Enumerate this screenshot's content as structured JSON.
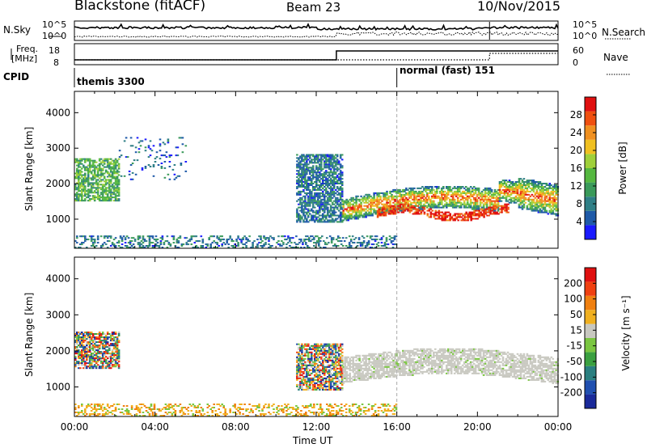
{
  "header": {
    "station": "Blackstone (fitACF)",
    "beam": "Beam 23",
    "date": "10/Nov/2015"
  },
  "strip": {
    "nsky_label": "N.Sky",
    "nsearch_label": "N.Search",
    "log_tick_high": "10^5",
    "log_tick_low": "10^0",
    "freq_label": "Freq.",
    "freq_unit": "[MHz]",
    "freq_ticks": [
      "18",
      "8"
    ],
    "nave_label": "Nave",
    "nave_ticks": [
      "60",
      "0"
    ],
    "cpid_label": "CPID",
    "cpid_segments": [
      {
        "text": "themis 3300",
        "start_hour": 0
      },
      {
        "text": "normal (fast) 151",
        "start_hour": 16
      }
    ]
  },
  "time_axis": {
    "label": "Time UT",
    "ticks": [
      "00:00",
      "04:00",
      "08:00",
      "12:00",
      "16:00",
      "20:00",
      "00:00"
    ]
  },
  "chart_data": [
    {
      "type": "heatmap",
      "name": "power",
      "xlabel": "Time UT",
      "ylabel": "Slant Range [km]",
      "xlim_hours": [
        0,
        24
      ],
      "ylim": [
        180,
        4600
      ],
      "yticks": [
        1000,
        2000,
        3000,
        4000
      ],
      "colorbar_label": "Power [dB]",
      "colorbar_ticks": [
        4,
        8,
        12,
        16,
        20,
        24,
        28
      ],
      "colorbar_range": [
        0,
        32
      ],
      "colors": [
        "#1a1aff",
        "#1f5aa8",
        "#2f7f86",
        "#3a9a5a",
        "#55b840",
        "#9fd03a",
        "#f0c020",
        "#f09020",
        "#f05010",
        "#e01010"
      ],
      "echo_regions": [
        {
          "t0": 0.0,
          "t1": 2.2,
          "r0": 1500,
          "r1": 2700,
          "level": 0.4
        },
        {
          "t0": 2.2,
          "t1": 5.5,
          "r0": 2100,
          "r1": 3300,
          "level": 0.15
        },
        {
          "t0": 0.0,
          "t1": 16.0,
          "r0": 180,
          "r1": 500,
          "level": 0.2
        },
        {
          "t0": 11.0,
          "t1": 13.3,
          "r0": 900,
          "r1": 2800,
          "level": 0.2
        },
        {
          "t0": 13.3,
          "t1": 24.0,
          "r0": 900,
          "r1": 2200,
          "level": 0.55
        },
        {
          "t0": 15.0,
          "t1": 21.5,
          "r0": 900,
          "r1": 1400,
          "level": 0.92
        }
      ]
    },
    {
      "type": "heatmap",
      "name": "velocity",
      "xlabel": "Time UT",
      "ylabel": "Slant Range [km]",
      "xlim_hours": [
        0,
        24
      ],
      "ylim": [
        180,
        4600
      ],
      "yticks": [
        1000,
        2000,
        3000,
        4000
      ],
      "colorbar_label": "Velocity [m s⁻¹]",
      "colorbar_ticks": [
        200,
        100,
        50,
        15,
        -15,
        -50,
        -100,
        -200
      ],
      "colorbar_range": [
        -250,
        250
      ],
      "colors": [
        "#1a2a9a",
        "#2050b0",
        "#2a7f80",
        "#3aa040",
        "#7ac640",
        "#c8c8c0",
        "#f0b020",
        "#f08010",
        "#f04010",
        "#e01010"
      ],
      "echo_regions": [
        {
          "t0": 0.0,
          "t1": 2.2,
          "r0": 1500,
          "r1": 2500,
          "kind": "mixed"
        },
        {
          "t0": 0.0,
          "t1": 16.0,
          "r0": 180,
          "r1": 500,
          "kind": "ground"
        },
        {
          "t0": 11.0,
          "t1": 13.3,
          "r0": 900,
          "r1": 2200,
          "kind": "mixed"
        },
        {
          "t0": 13.3,
          "t1": 24.0,
          "r0": 900,
          "r1": 2150,
          "kind": "low"
        }
      ]
    }
  ]
}
